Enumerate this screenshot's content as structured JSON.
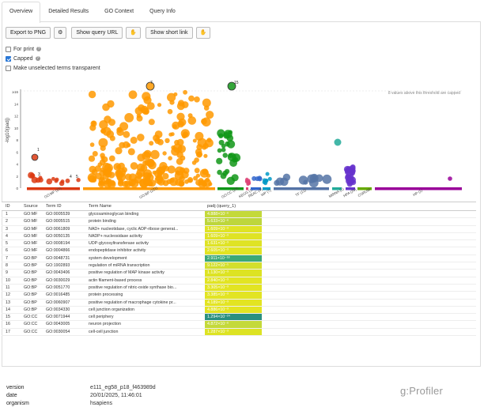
{
  "tabs": [
    "Overview",
    "Detailed Results",
    "GO Context",
    "Query Info"
  ],
  "toolbar": {
    "export": "Export to PNG",
    "show_query": "Show query URL",
    "show_short": "Show short link"
  },
  "options": [
    {
      "label": "For print",
      "checked": false,
      "help": true
    },
    {
      "label": "Capped",
      "checked": true,
      "help": true
    },
    {
      "label": "Make unselected terms transparent",
      "checked": false,
      "help": false
    }
  ],
  "plot": {
    "ylabel": "-log10(padj)",
    "yticks": [
      "0",
      "2",
      "4",
      "6",
      "8",
      "10",
      "12",
      "14",
      "≥16"
    ],
    "note": "8 values above this threshold are capped",
    "sources": [
      {
        "label": "GO:MF (15)",
        "color": "#dc3912"
      },
      {
        "label": "GO:BP (221)",
        "color": "#ff9900"
      },
      {
        "label": "GO:CC (26)",
        "color": "#109618"
      },
      {
        "label": "KEGG (11)",
        "color": "#dd4477"
      },
      {
        "label": "REAC (4)",
        "color": "#3366cc"
      },
      {
        "label": "WP (7)",
        "color": "#0099c6"
      },
      {
        "label": "TF (12)",
        "color": "#5574a6"
      },
      {
        "label": "MIRNA (1)",
        "color": "#22aa99"
      },
      {
        "label": "HPA (26)",
        "color": "#6633cc"
      },
      {
        "label": "CORUM",
        "color": "#66aa00"
      },
      {
        "label": "HP (1)",
        "color": "#990099"
      }
    ],
    "highlight_labels": [
      "1",
      "2",
      "3",
      "4",
      "5",
      "6",
      "7",
      "8",
      "9",
      "10",
      "11",
      "12",
      "13",
      "14",
      "15",
      "16",
      "17"
    ]
  },
  "table": {
    "headers": {
      "id": "ID",
      "source": "Source",
      "term_id": "Term ID",
      "term_name": "Term Name",
      "p": "padj (query_1)"
    },
    "rows": [
      {
        "id": "1",
        "source": "GO:MF",
        "term_id": "GO:0005539",
        "name": "glycosaminoglycan binding",
        "p": "4.888×10⁻⁶",
        "color": "#c4d93a"
      },
      {
        "id": "2",
        "source": "GO:MF",
        "term_id": "GO:0005515",
        "name": "protein binding",
        "p": "5.633×10⁻⁶",
        "color": "#bdd63c"
      },
      {
        "id": "3",
        "source": "GO:MF",
        "term_id": "GO:0061809",
        "name": "NAD+ nucleotidase, cyclic ADP-ribose generat...",
        "p": "1.609×10⁻³",
        "color": "#dfe325"
      },
      {
        "id": "4",
        "source": "GO:MF",
        "term_id": "GO:0050135",
        "name": "NADP+ nucleosidase activity",
        "p": "1.609×10⁻³",
        "color": "#dfe325"
      },
      {
        "id": "5",
        "source": "GO:MF",
        "term_id": "GO:0008194",
        "name": "UDP-glycosyltransferase activity",
        "p": "1.631×10⁻³",
        "color": "#dfe325"
      },
      {
        "id": "6",
        "source": "GO:MF",
        "term_id": "GO:0004866",
        "name": "endopeptidase inhibitor activity",
        "p": "2.605×10⁻³",
        "color": "#e2e423"
      },
      {
        "id": "7",
        "source": "GO:BP",
        "term_id": "GO:0048731",
        "name": "system development",
        "p": "2.911×10⁻¹⁸",
        "color": "#3ca877"
      },
      {
        "id": "8",
        "source": "GO:BP",
        "term_id": "GO:1902893",
        "name": "regulation of miRNA transcription",
        "p": "9.122×10⁻⁵",
        "color": "#d3df2d"
      },
      {
        "id": "9",
        "source": "GO:BP",
        "term_id": "GO:0043406",
        "name": "positive regulation of MAP kinase activity",
        "p": "1.130×10⁻³",
        "color": "#dde323"
      },
      {
        "id": "10",
        "source": "GO:BP",
        "term_id": "GO:0030029",
        "name": "actin filament-based process",
        "p": "2.840×10⁻³",
        "color": "#e2e423"
      },
      {
        "id": "11",
        "source": "GO:BP",
        "term_id": "GO:0051770",
        "name": "positive regulation of nitric-oxide synthase bio...",
        "p": "3.305×10⁻³",
        "color": "#e2e423"
      },
      {
        "id": "12",
        "source": "GO:BP",
        "term_id": "GO:0016485",
        "name": "protein processing",
        "p": "3.385×10⁻³",
        "color": "#e2e423"
      },
      {
        "id": "13",
        "source": "GO:BP",
        "term_id": "GO:0060907",
        "name": "positive regulation of macrophage cytokine pr...",
        "p": "4.189×10⁻³",
        "color": "#e3e422"
      },
      {
        "id": "14",
        "source": "GO:BP",
        "term_id": "GO:0034330",
        "name": "cell junction organization",
        "p": "4.886×10⁻³",
        "color": "#e3e422"
      },
      {
        "id": "15",
        "source": "GO:CC",
        "term_id": "GO:0071944",
        "name": "cell periphery",
        "p": "1.294×10⁻²⁴",
        "color": "#2b9080"
      },
      {
        "id": "16",
        "source": "GO:CC",
        "term_id": "GO:0043005",
        "name": "neuron projection",
        "p": "4.872×10⁻⁶",
        "color": "#c4d93a"
      },
      {
        "id": "17",
        "source": "GO:CC",
        "term_id": "GO:0030054",
        "name": "cell-cell junction",
        "p": "1.287×10⁻³",
        "color": "#dde323"
      }
    ]
  },
  "meta": [
    {
      "k": "version",
      "v": "e111_eg58_p18_f463989d"
    },
    {
      "k": "date",
      "v": "20/01/2025, 11:46:01"
    },
    {
      "k": "organism",
      "v": "hsapiens"
    }
  ],
  "logo": "g:Profiler"
}
